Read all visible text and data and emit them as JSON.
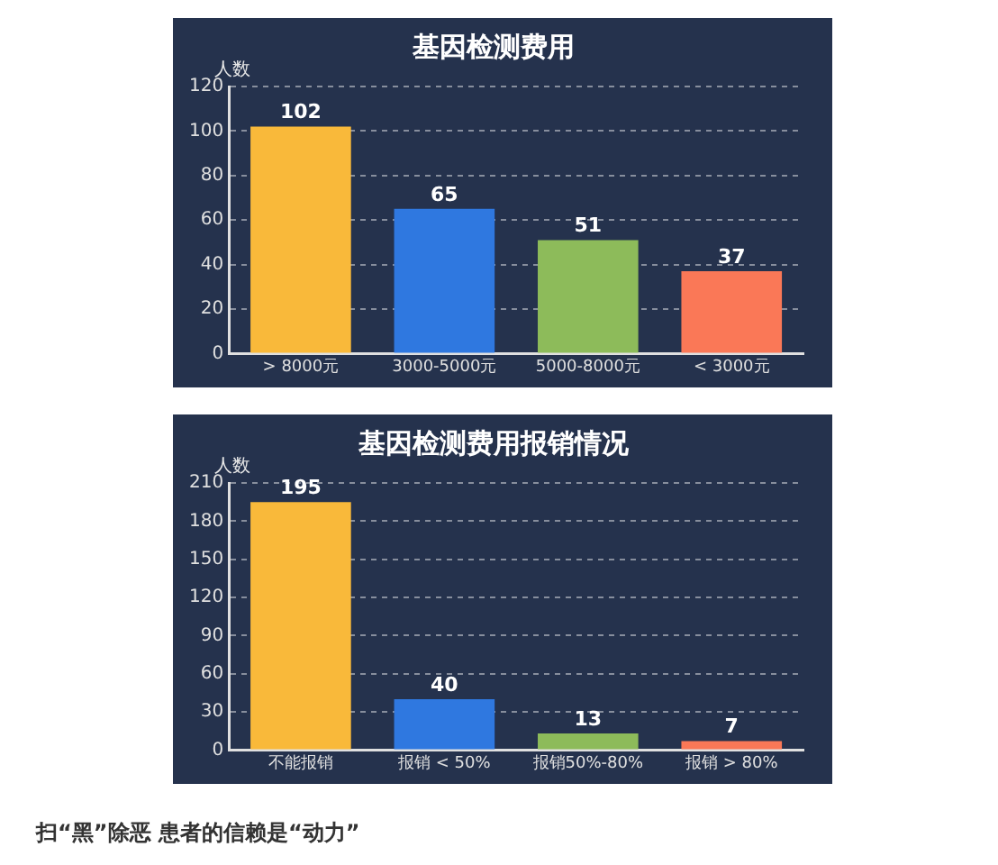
{
  "chart_data": [
    {
      "type": "bar",
      "title": "基因检测费用",
      "ylabel": "人数",
      "categories": [
        "> 8000元",
        "3000-5000元",
        "5000-8000元",
        "< 3000元"
      ],
      "values": [
        102,
        65,
        51,
        37
      ],
      "colors": [
        "#f9b93a",
        "#2f78e0",
        "#8dbb5a",
        "#fa7857"
      ],
      "ylim": [
        0,
        120
      ],
      "yticks": [
        0,
        20,
        40,
        60,
        80,
        100,
        120
      ],
      "grid": "y",
      "line_style": "dashed",
      "data_labels": true
    },
    {
      "type": "bar",
      "title": "基因检测费用报销情况",
      "ylabel": "人数",
      "categories": [
        "不能报销",
        "报销 < 50%",
        "报销50%-80%",
        "报销 > 80%"
      ],
      "values": [
        195,
        40,
        13,
        7
      ],
      "colors": [
        "#f9b93a",
        "#2f78e0",
        "#8dbb5a",
        "#fa7857"
      ],
      "ylim": [
        0,
        210
      ],
      "yticks": [
        0,
        30,
        60,
        90,
        120,
        150,
        180,
        210
      ],
      "grid": "y",
      "line_style": "dashed",
      "data_labels": true,
      "annotations": [
        "扫“黑”除恶 患者的信赖是“动力”"
      ]
    }
  ]
}
